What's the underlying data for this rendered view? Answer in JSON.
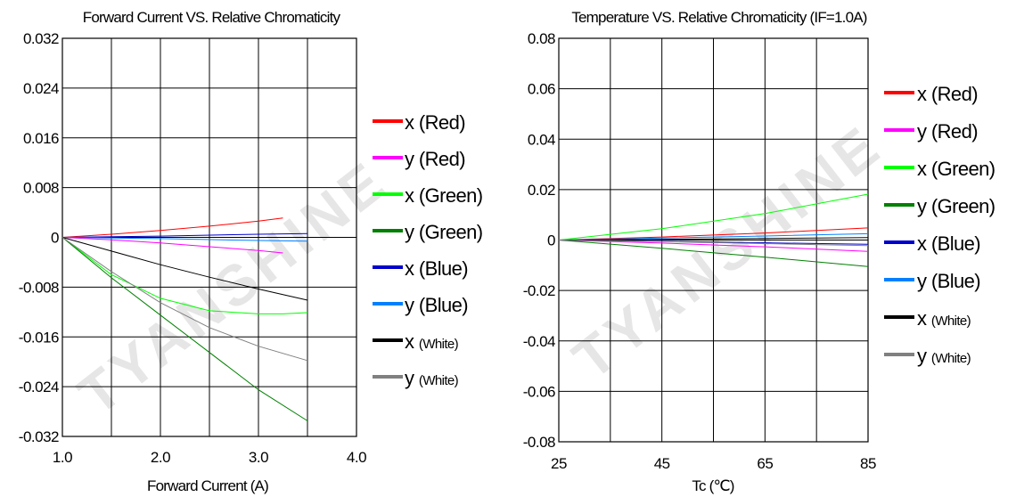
{
  "watermark": "TYANSHINE",
  "chart_data": [
    {
      "type": "line",
      "title": "Forward Current VS. Relative Chromaticity",
      "xlabel": "Forward Current (A)",
      "ylabel": "",
      "xlim": [
        1.0,
        4.0
      ],
      "ylim": [
        -0.032,
        0.032
      ],
      "x_ticks": [
        1.0,
        1.5,
        2.0,
        2.5,
        3.0,
        3.5,
        4.0
      ],
      "x_tick_labels": [
        "1.0",
        "",
        "2.0",
        "",
        "3.0",
        "",
        "4.0"
      ],
      "y_ticks": [
        0.032,
        0.024,
        0.016,
        0.008,
        0,
        -0.008,
        -0.016,
        -0.024,
        -0.032
      ],
      "y_tick_labels": [
        "0.032",
        "0.024",
        "0.016",
        "0.008",
        "0",
        "-0.008",
        "-0.016",
        "-0.024",
        "-0.032"
      ],
      "grid": true,
      "legend_position": "right",
      "series": [
        {
          "name": "x",
          "tag": "(Red)",
          "color": "#ff0000",
          "x": [
            1.0,
            1.5,
            2.0,
            2.5,
            3.0,
            3.25
          ],
          "y": [
            0,
            0.0005,
            0.0011,
            0.0018,
            0.0026,
            0.0031
          ]
        },
        {
          "name": "y",
          "tag": "(Red)",
          "color": "#ff00ff",
          "x": [
            1.0,
            1.5,
            2.0,
            2.5,
            3.0,
            3.25
          ],
          "y": [
            0,
            -0.0004,
            -0.0009,
            -0.0015,
            -0.0021,
            -0.0025
          ]
        },
        {
          "name": "x",
          "tag": "(Green)",
          "color": "#00ff00",
          "x": [
            1.0,
            1.5,
            2.0,
            2.5,
            3.0,
            3.25,
            3.5
          ],
          "y": [
            0,
            -0.006,
            -0.0098,
            -0.0118,
            -0.0123,
            -0.0123,
            -0.0121
          ]
        },
        {
          "name": "y",
          "tag": "(Green)",
          "color": "#008000",
          "x": [
            1.0,
            1.5,
            2.0,
            2.5,
            3.0,
            3.5
          ],
          "y": [
            0,
            -0.0065,
            -0.0125,
            -0.0185,
            -0.0245,
            -0.0295
          ]
        },
        {
          "name": "x",
          "tag": "(Blue)",
          "color": "#0000cc",
          "x": [
            1.0,
            2.0,
            3.0,
            3.5
          ],
          "y": [
            0,
            0.0002,
            0.0005,
            0.0006
          ]
        },
        {
          "name": "y",
          "tag": "(Blue)",
          "color": "#0080ff",
          "x": [
            1.0,
            2.0,
            3.0,
            3.5
          ],
          "y": [
            0,
            -0.0002,
            -0.0005,
            -0.0006
          ]
        },
        {
          "name": "x",
          "tag": "(White)",
          "color": "#000000",
          "x": [
            1.0,
            1.5,
            2.0,
            2.5,
            3.0,
            3.5
          ],
          "y": [
            0,
            -0.0022,
            -0.0044,
            -0.0064,
            -0.0083,
            -0.0101
          ]
        },
        {
          "name": "y",
          "tag": "(White)",
          "color": "#808080",
          "x": [
            1.0,
            1.5,
            2.0,
            2.5,
            3.0,
            3.5
          ],
          "y": [
            0,
            -0.0055,
            -0.0105,
            -0.0145,
            -0.0175,
            -0.0198
          ]
        }
      ]
    },
    {
      "type": "line",
      "title": "Temperature VS. Relative Chromaticity (IF=1.0A)",
      "xlabel": "Tc (℃)",
      "ylabel": "",
      "xlim": [
        25,
        85
      ],
      "ylim": [
        -0.08,
        0.08
      ],
      "x_ticks": [
        25,
        35,
        45,
        55,
        65,
        75,
        85
      ],
      "x_tick_labels": [
        "25",
        "",
        "45",
        "",
        "65",
        "",
        "85"
      ],
      "y_ticks": [
        0.08,
        0.06,
        0.04,
        0.02,
        0,
        -0.02,
        -0.04,
        -0.06,
        -0.08
      ],
      "y_tick_labels": [
        "0.08",
        "0.06",
        "0.04",
        "0.02",
        "0",
        "-0.02",
        "-0.04",
        "-0.06",
        "-0.08"
      ],
      "grid": true,
      "legend_position": "right",
      "series": [
        {
          "name": "x",
          "tag": "(Red)",
          "color": "#ff0000",
          "x": [
            25,
            45,
            65,
            85
          ],
          "y": [
            0,
            0.0012,
            0.0028,
            0.0048
          ]
        },
        {
          "name": "y",
          "tag": "(Red)",
          "color": "#ff00ff",
          "x": [
            25,
            45,
            65,
            85
          ],
          "y": [
            0,
            -0.0012,
            -0.0027,
            -0.0045
          ]
        },
        {
          "name": "x",
          "tag": "(Green)",
          "color": "#00ff00",
          "x": [
            25,
            45,
            65,
            85
          ],
          "y": [
            0,
            0.0045,
            0.0105,
            0.0182
          ]
        },
        {
          "name": "y",
          "tag": "(Green)",
          "color": "#008000",
          "x": [
            25,
            45,
            65,
            85
          ],
          "y": [
            0,
            -0.0033,
            -0.0068,
            -0.0105
          ]
        },
        {
          "name": "x",
          "tag": "(Blue)",
          "color": "#0000cc",
          "x": [
            25,
            45,
            65,
            85
          ],
          "y": [
            0,
            -0.0005,
            -0.0011,
            -0.0017
          ]
        },
        {
          "name": "y",
          "tag": "(Blue)",
          "color": "#0080ff",
          "x": [
            25,
            45,
            65,
            85
          ],
          "y": [
            0,
            0.0008,
            0.0016,
            0.0025
          ]
        },
        {
          "name": "x",
          "tag": "(White)",
          "color": "#000000",
          "x": [
            25,
            45,
            65,
            85
          ],
          "y": [
            0,
            0.0003,
            0.0006,
            0.001
          ]
        },
        {
          "name": "y",
          "tag": "(White)",
          "color": "#808080",
          "x": [
            25,
            45,
            65,
            85
          ],
          "y": [
            0,
            -0.0006,
            -0.0014,
            -0.0022
          ]
        }
      ]
    }
  ]
}
